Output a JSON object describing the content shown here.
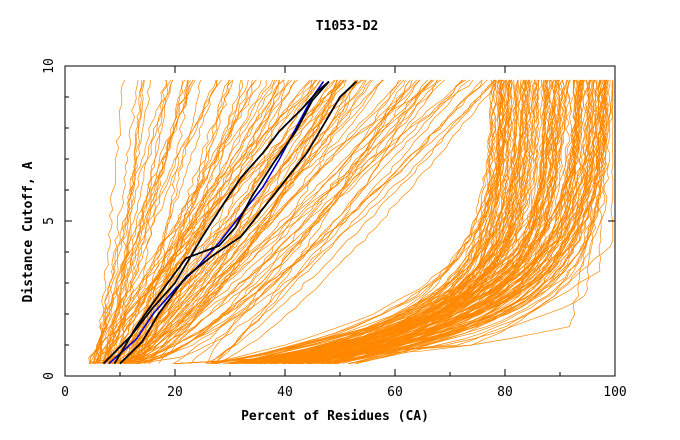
{
  "chart_data": {
    "type": "line",
    "title": "T1053-D2",
    "xlabel": "Percent of Residues (CA)",
    "ylabel": "Distance Cutoff, A",
    "xlim": [
      0,
      100
    ],
    "ylim": [
      0,
      10
    ],
    "x_ticks": [
      "0",
      "20",
      "40",
      "60",
      "80",
      "100"
    ],
    "y_ticks": [
      "0",
      "5",
      "10"
    ],
    "grid": false,
    "legend": "none",
    "colors": {
      "models": "#ff8800",
      "highlight": "#000000",
      "reference": "#0000cc"
    },
    "series": [
      {
        "style": "reference",
        "color": "#0000cc",
        "x": [
          8,
          13,
          16,
          20,
          24,
          28,
          32,
          36,
          39,
          42,
          45,
          47
        ],
        "y": [
          0.4,
          1.2,
          2.0,
          2.8,
          3.5,
          4.3,
          5.2,
          6.1,
          7.0,
          8.0,
          9.0,
          9.5
        ]
      },
      {
        "style": "highlight",
        "color": "#000000",
        "x": [
          7,
          12,
          16,
          20,
          25,
          29,
          32,
          36,
          39,
          43,
          46,
          48
        ],
        "y": [
          0.4,
          1.3,
          2.2,
          3.0,
          4.5,
          5.6,
          6.4,
          7.2,
          7.9,
          8.6,
          9.2,
          9.5
        ]
      },
      {
        "style": "highlight",
        "color": "#000000",
        "x": [
          9,
          13,
          17,
          22,
          28,
          31,
          34,
          38,
          42,
          45,
          48
        ],
        "y": [
          0.4,
          1.6,
          2.6,
          3.8,
          4.2,
          4.8,
          5.8,
          6.9,
          7.9,
          8.9,
          9.5
        ]
      },
      {
        "style": "highlight",
        "color": "#000000",
        "x": [
          10,
          14,
          17,
          22,
          27,
          32,
          36,
          40,
          44,
          47,
          50,
          53
        ],
        "y": [
          0.4,
          1.1,
          2.0,
          3.2,
          3.9,
          4.5,
          5.4,
          6.3,
          7.2,
          8.1,
          9.0,
          9.5
        ]
      }
    ]
  }
}
